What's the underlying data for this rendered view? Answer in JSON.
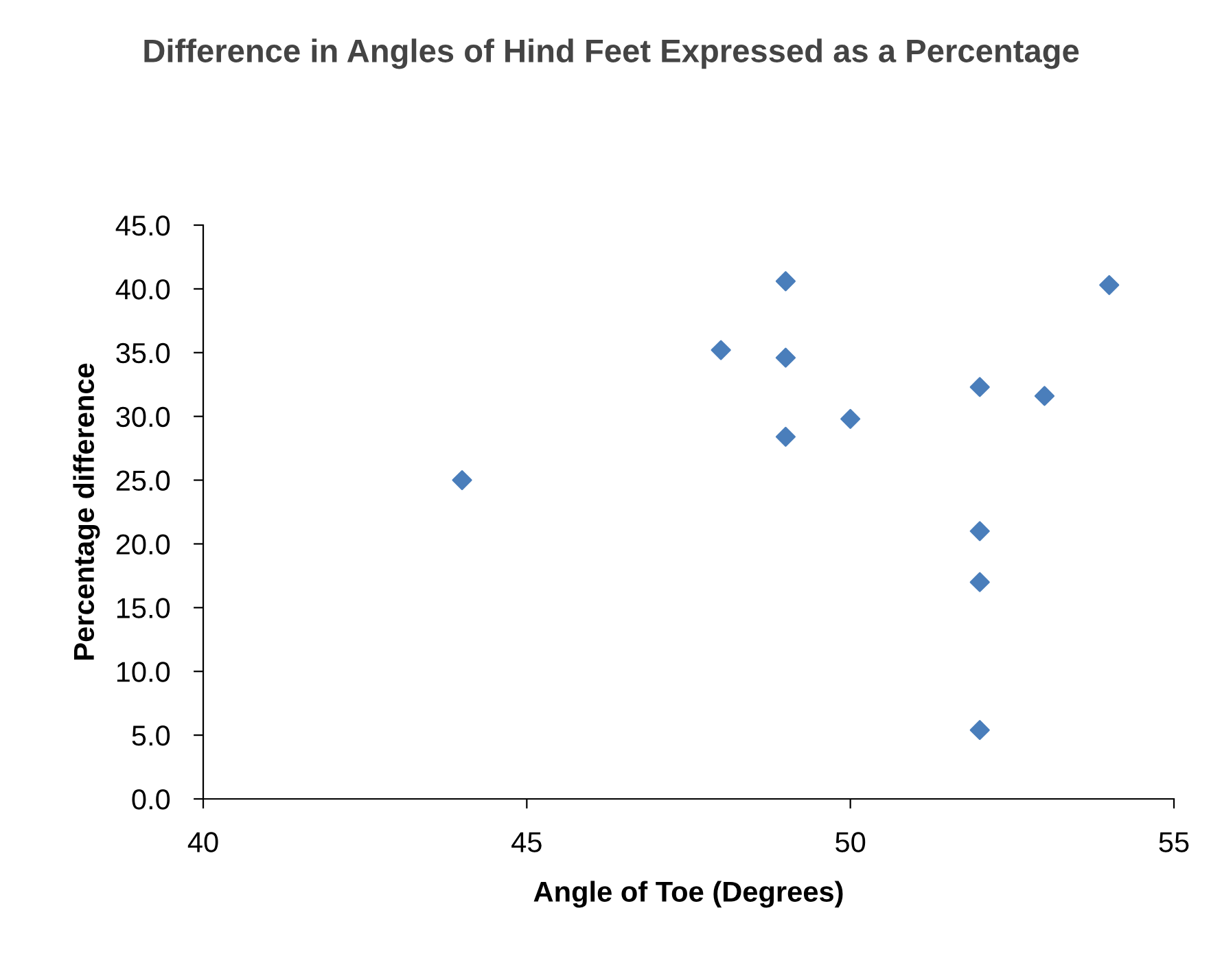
{
  "chart_data": {
    "type": "scatter",
    "title": "Difference in Angles of Hind Feet Expressed as a Percentage",
    "xlabel": "Angle of Toe (Degrees)",
    "ylabel": "Percentage difference",
    "x": [
      44,
      48,
      49,
      49,
      49,
      50,
      52,
      53,
      54,
      52,
      52,
      52
    ],
    "values": [
      25.0,
      35.2,
      40.6,
      34.6,
      28.4,
      29.8,
      32.3,
      31.6,
      40.3,
      21.0,
      17.0,
      5.4
    ],
    "color": "#4a7ebb",
    "marker": "diamond",
    "xlim": [
      40,
      55
    ],
    "xticks": [
      40,
      45,
      50,
      55
    ],
    "ylim": [
      0,
      45
    ],
    "yticks": [
      {
        "value": 0,
        "label": "0.0"
      },
      {
        "value": 5,
        "label": "5.0"
      },
      {
        "value": 10,
        "label": "10.0"
      },
      {
        "value": 15,
        "label": "15.0"
      },
      {
        "value": 20,
        "label": "20.0"
      },
      {
        "value": 25,
        "label": "25.0"
      },
      {
        "value": 30,
        "label": "30.0"
      },
      {
        "value": 35,
        "label": "35.0"
      },
      {
        "value": 40,
        "label": "40.0"
      },
      {
        "value": 45,
        "label": "45.0"
      }
    ],
    "grid": false
  }
}
